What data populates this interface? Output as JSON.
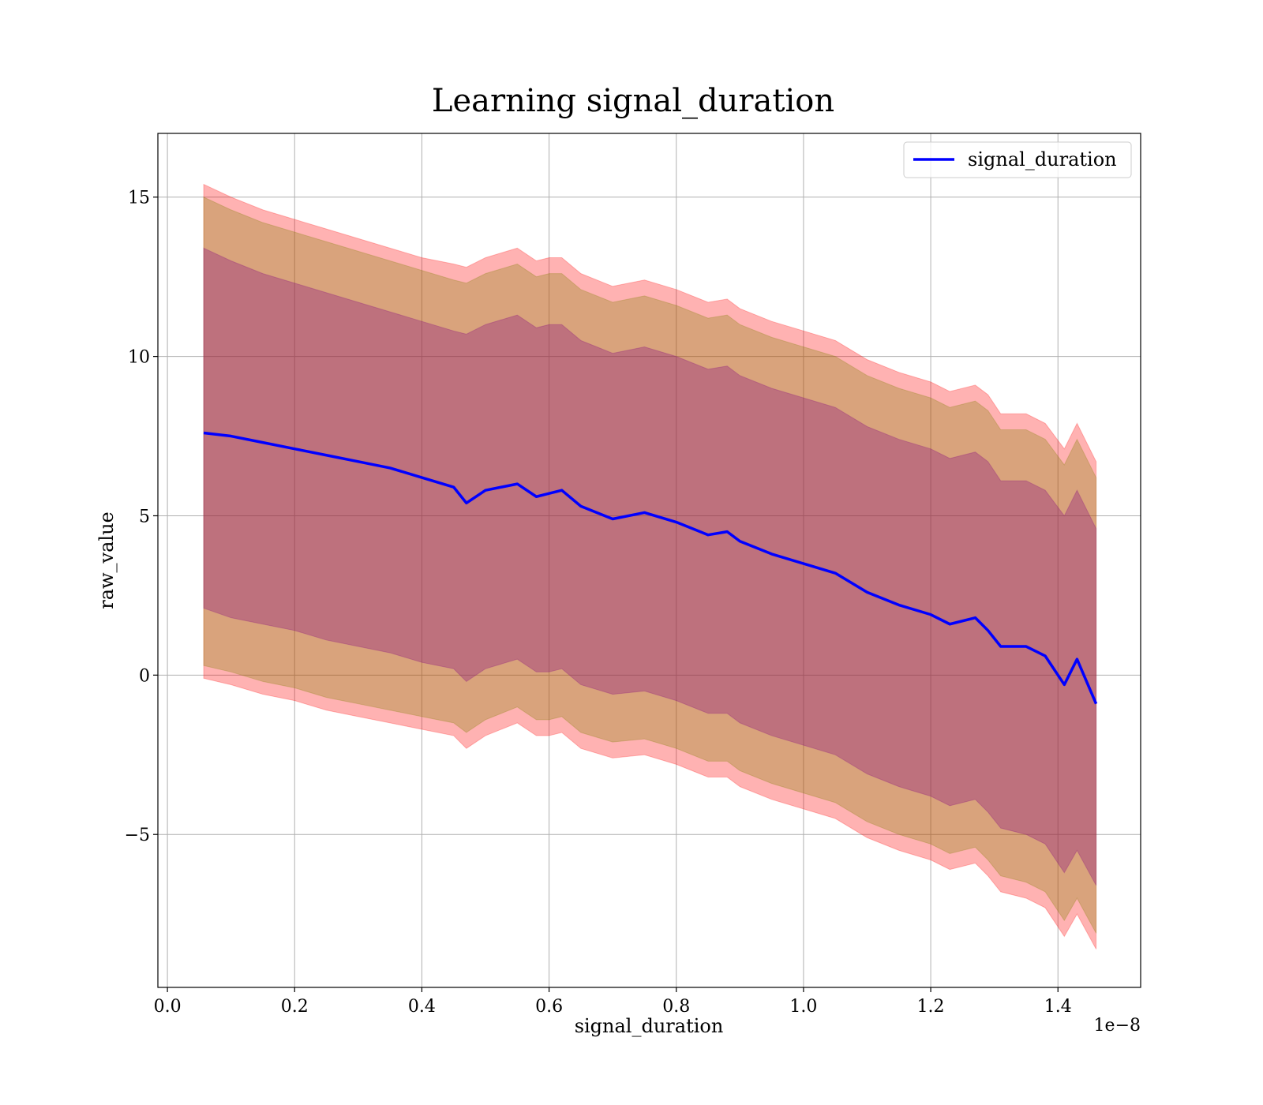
{
  "chart_data": {
    "type": "area",
    "title": "Learning signal_duration",
    "xlabel": "signal_duration",
    "ylabel": "raw_value",
    "x_offset_label": "1e−8",
    "xlim": [
      -0.015,
      1.53
    ],
    "ylim": [
      -9.8,
      17.0
    ],
    "x_ticks": [
      0.0,
      0.2,
      0.4,
      0.6,
      0.8,
      1.0,
      1.2,
      1.4
    ],
    "x_tick_labels": [
      "0.0",
      "0.2",
      "0.4",
      "0.6",
      "0.8",
      "1.0",
      "1.2",
      "1.4"
    ],
    "y_ticks": [
      -5,
      0,
      5,
      10,
      15
    ],
    "y_tick_labels": [
      "−5",
      "0",
      "5",
      "10",
      "15"
    ],
    "grid": true,
    "legend": {
      "position": "top-right",
      "entries": [
        "signal_duration"
      ]
    },
    "colors": {
      "line": "#0000ff",
      "band_outer": "#ff0000",
      "band_middle": "#808000",
      "band_inner": "#800080"
    },
    "x": [
      0.057,
      0.1,
      0.15,
      0.2,
      0.25,
      0.3,
      0.35,
      0.4,
      0.45,
      0.47,
      0.5,
      0.55,
      0.58,
      0.6,
      0.62,
      0.65,
      0.7,
      0.75,
      0.8,
      0.85,
      0.88,
      0.9,
      0.95,
      1.0,
      1.05,
      1.1,
      1.15,
      1.2,
      1.23,
      1.27,
      1.29,
      1.31,
      1.35,
      1.38,
      1.41,
      1.43,
      1.46
    ],
    "series": [
      {
        "name": "signal_duration",
        "values": [
          7.6,
          7.5,
          7.3,
          7.1,
          6.9,
          6.7,
          6.5,
          6.2,
          5.9,
          5.4,
          5.8,
          6.0,
          5.6,
          5.7,
          5.8,
          5.3,
          4.9,
          5.1,
          4.8,
          4.4,
          4.5,
          4.2,
          3.8,
          3.5,
          3.2,
          2.6,
          2.2,
          1.9,
          1.6,
          1.8,
          1.4,
          0.9,
          0.9,
          0.6,
          -0.3,
          0.5,
          -0.9
        ]
      }
    ],
    "bands": [
      {
        "role": "outer",
        "upper": [
          15.4,
          15.0,
          14.6,
          14.3,
          14.0,
          13.7,
          13.4,
          13.1,
          12.9,
          12.8,
          13.1,
          13.4,
          13.0,
          13.1,
          13.1,
          12.6,
          12.2,
          12.4,
          12.1,
          11.7,
          11.8,
          11.5,
          11.1,
          10.8,
          10.5,
          9.9,
          9.5,
          9.2,
          8.9,
          9.1,
          8.8,
          8.2,
          8.2,
          7.9,
          7.1,
          7.9,
          6.7
        ],
        "lower": [
          -0.1,
          -0.3,
          -0.6,
          -0.8,
          -1.1,
          -1.3,
          -1.5,
          -1.7,
          -1.9,
          -2.3,
          -1.9,
          -1.5,
          -1.9,
          -1.9,
          -1.8,
          -2.3,
          -2.6,
          -2.5,
          -2.8,
          -3.2,
          -3.2,
          -3.5,
          -3.9,
          -4.2,
          -4.5,
          -5.1,
          -5.5,
          -5.8,
          -6.1,
          -5.9,
          -6.3,
          -6.8,
          -7.0,
          -7.3,
          -8.2,
          -7.5,
          -8.6
        ]
      },
      {
        "role": "middle",
        "upper": [
          15.0,
          14.6,
          14.2,
          13.9,
          13.6,
          13.3,
          13.0,
          12.7,
          12.4,
          12.3,
          12.6,
          12.9,
          12.5,
          12.6,
          12.6,
          12.1,
          11.7,
          11.9,
          11.6,
          11.2,
          11.3,
          11.0,
          10.6,
          10.3,
          10.0,
          9.4,
          9.0,
          8.7,
          8.4,
          8.6,
          8.3,
          7.7,
          7.7,
          7.4,
          6.6,
          7.4,
          6.2
        ],
        "lower": [
          0.3,
          0.1,
          -0.2,
          -0.4,
          -0.7,
          -0.9,
          -1.1,
          -1.3,
          -1.5,
          -1.8,
          -1.4,
          -1.0,
          -1.4,
          -1.4,
          -1.3,
          -1.8,
          -2.1,
          -2.0,
          -2.3,
          -2.7,
          -2.7,
          -3.0,
          -3.4,
          -3.7,
          -4.0,
          -4.6,
          -5.0,
          -5.3,
          -5.6,
          -5.4,
          -5.8,
          -6.3,
          -6.5,
          -6.8,
          -7.7,
          -7.0,
          -8.1
        ]
      },
      {
        "role": "inner",
        "upper": [
          13.4,
          13.0,
          12.6,
          12.3,
          12.0,
          11.7,
          11.4,
          11.1,
          10.8,
          10.7,
          11.0,
          11.3,
          10.9,
          11.0,
          11.0,
          10.5,
          10.1,
          10.3,
          10.0,
          9.6,
          9.7,
          9.4,
          9.0,
          8.7,
          8.4,
          7.8,
          7.4,
          7.1,
          6.8,
          7.0,
          6.7,
          6.1,
          6.1,
          5.8,
          5.0,
          5.8,
          4.6
        ],
        "lower": [
          2.1,
          1.8,
          1.6,
          1.4,
          1.1,
          0.9,
          0.7,
          0.4,
          0.2,
          -0.2,
          0.2,
          0.5,
          0.1,
          0.1,
          0.2,
          -0.3,
          -0.6,
          -0.5,
          -0.8,
          -1.2,
          -1.2,
          -1.5,
          -1.9,
          -2.2,
          -2.5,
          -3.1,
          -3.5,
          -3.8,
          -4.1,
          -3.9,
          -4.3,
          -4.8,
          -5.0,
          -5.3,
          -6.2,
          -5.5,
          -6.6
        ]
      }
    ]
  }
}
